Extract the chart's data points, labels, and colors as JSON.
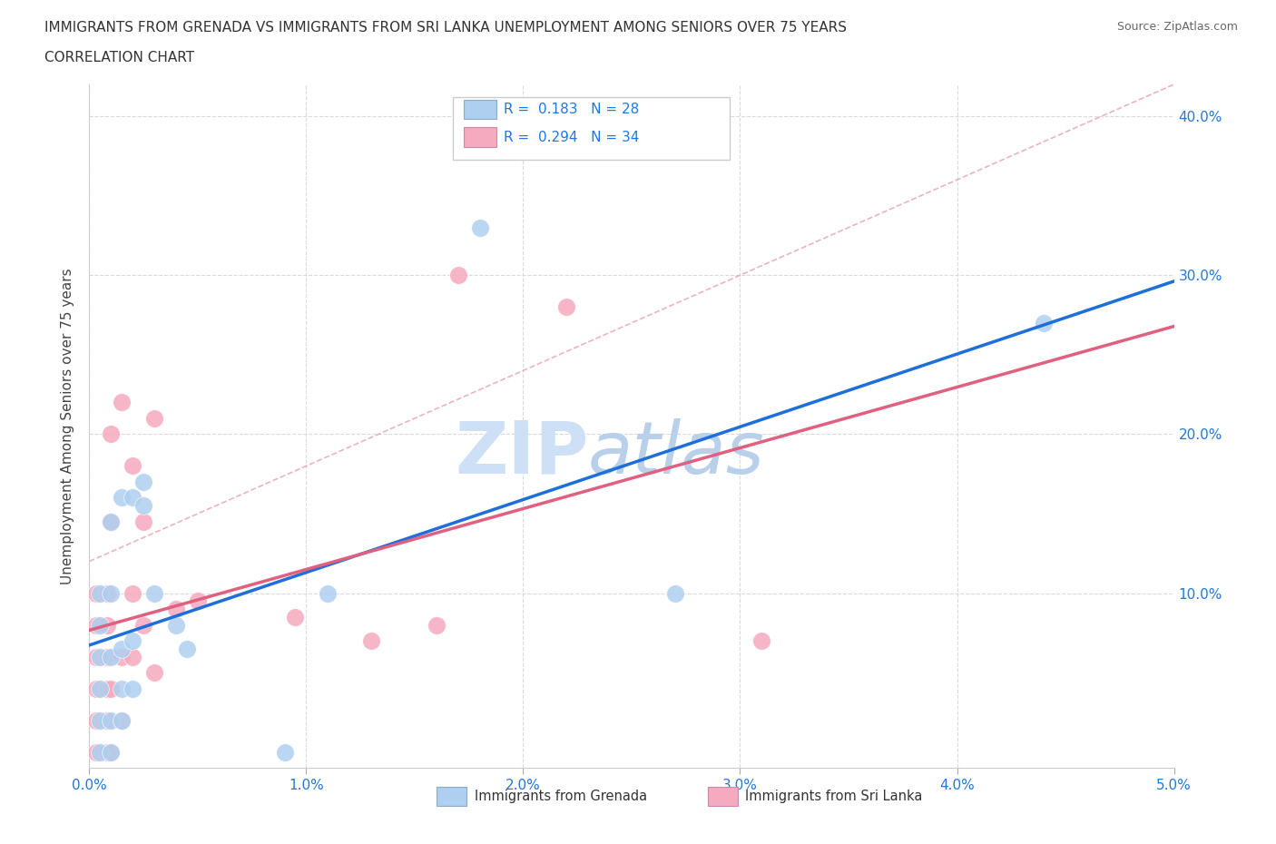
{
  "title_line1": "IMMIGRANTS FROM GRENADA VS IMMIGRANTS FROM SRI LANKA UNEMPLOYMENT AMONG SENIORS OVER 75 YEARS",
  "title_line2": "CORRELATION CHART",
  "source_text": "Source: ZipAtlas.com",
  "ylabel": "Unemployment Among Seniors over 75 years",
  "xlim": [
    0.0,
    0.05
  ],
  "ylim": [
    -0.01,
    0.42
  ],
  "xticks": [
    0.0,
    0.01,
    0.02,
    0.03,
    0.04,
    0.05
  ],
  "yticks": [
    0.1,
    0.2,
    0.3,
    0.4
  ],
  "xticklabels": [
    "0.0%",
    "1.0%",
    "2.0%",
    "3.0%",
    "4.0%",
    "5.0%"
  ],
  "yticklabels": [
    "10.0%",
    "20.0%",
    "30.0%",
    "40.0%"
  ],
  "grenada_color": "#aecff0",
  "srilanka_color": "#f5aabf",
  "grenada_R": 0.183,
  "grenada_N": 28,
  "srilanka_R": 0.294,
  "srilanka_N": 34,
  "legend_color": "#2277dd",
  "watermark_zip_color": "#cde0f5",
  "watermark_atlas_color": "#b8d0ea",
  "grenada_x": [
    0.0005,
    0.0005,
    0.0005,
    0.0005,
    0.0005,
    0.0005,
    0.001,
    0.001,
    0.001,
    0.001,
    0.001,
    0.0015,
    0.0015,
    0.0015,
    0.0015,
    0.002,
    0.002,
    0.002,
    0.0025,
    0.0025,
    0.003,
    0.0045,
    0.004,
    0.009,
    0.011,
    0.018,
    0.044,
    0.027
  ],
  "grenada_y": [
    0.0,
    0.02,
    0.04,
    0.06,
    0.08,
    0.1,
    0.0,
    0.02,
    0.06,
    0.1,
    0.145,
    0.02,
    0.04,
    0.065,
    0.16,
    0.04,
    0.07,
    0.16,
    0.155,
    0.17,
    0.1,
    0.065,
    0.08,
    0.0,
    0.1,
    0.33,
    0.27,
    0.1
  ],
  "srilanka_x": [
    0.0003,
    0.0003,
    0.0003,
    0.0003,
    0.0003,
    0.0003,
    0.0008,
    0.0008,
    0.0008,
    0.0008,
    0.0008,
    0.0008,
    0.001,
    0.001,
    0.001,
    0.001,
    0.0015,
    0.0015,
    0.0015,
    0.002,
    0.002,
    0.002,
    0.0025,
    0.0025,
    0.003,
    0.003,
    0.004,
    0.005,
    0.0095,
    0.013,
    0.016,
    0.017,
    0.022,
    0.031
  ],
  "srilanka_y": [
    0.0,
    0.02,
    0.04,
    0.06,
    0.08,
    0.1,
    0.0,
    0.02,
    0.04,
    0.06,
    0.08,
    0.1,
    0.0,
    0.04,
    0.145,
    0.2,
    0.02,
    0.06,
    0.22,
    0.06,
    0.1,
    0.18,
    0.08,
    0.145,
    0.05,
    0.21,
    0.09,
    0.095,
    0.085,
    0.07,
    0.08,
    0.3,
    0.28,
    0.07
  ]
}
